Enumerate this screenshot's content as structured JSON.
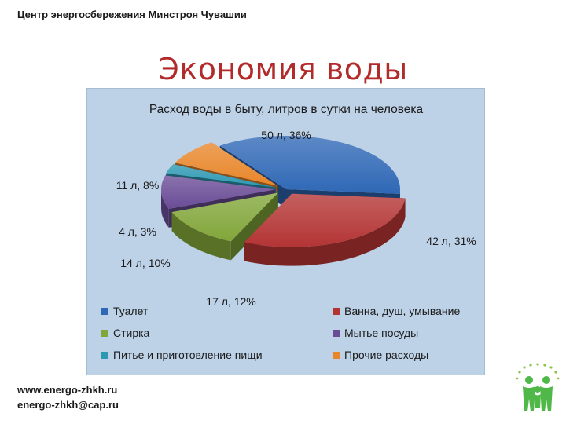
{
  "header": {
    "organization": "Центр энергосбережения Минстроя Чувашии"
  },
  "slide": {
    "title": "Экономия воды"
  },
  "footer": {
    "website": "www.energo-zhkh.ru",
    "email": "energo-zhkh@cap.ru"
  },
  "chart_data": {
    "type": "pie",
    "title": "Расход воды в быту, литров в сутки на человека",
    "slices": [
      {
        "name": "Туалет",
        "value": 50,
        "percent": 36,
        "label": "50 л, 36%",
        "color": "#2f68b6",
        "exploded": false
      },
      {
        "name": "Ванна, душ, умывание",
        "value": 42,
        "percent": 31,
        "label": "42 л, 31%",
        "color": "#b43434",
        "exploded": true
      },
      {
        "name": "Стирка",
        "value": 17,
        "percent": 12,
        "label": "17 л, 12%",
        "color": "#82a63a",
        "exploded": true
      },
      {
        "name": "Мытье посуды",
        "value": 14,
        "percent": 10,
        "label": "14 л, 10%",
        "color": "#6a4c96",
        "exploded": true
      },
      {
        "name": "Питье и приготовление пищи",
        "value": 4,
        "percent": 3,
        "label": "4 л, 3%",
        "color": "#2c98b2",
        "exploded": true
      },
      {
        "name": "Прочие расходы",
        "value": 11,
        "percent": 8,
        "label": "11 л, 8%",
        "color": "#e8862a",
        "exploded": true
      }
    ],
    "legend_position": "bottom"
  }
}
